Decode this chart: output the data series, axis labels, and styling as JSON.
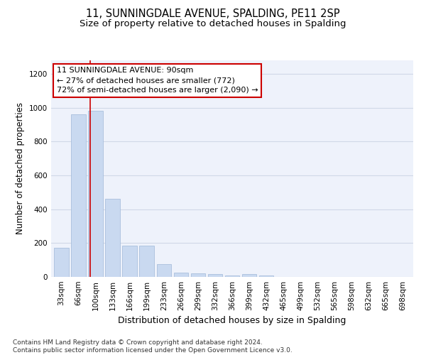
{
  "title": "11, SUNNINGDALE AVENUE, SPALDING, PE11 2SP",
  "subtitle": "Size of property relative to detached houses in Spalding",
  "xlabel": "Distribution of detached houses by size in Spalding",
  "ylabel": "Number of detached properties",
  "categories": [
    "33sqm",
    "66sqm",
    "100sqm",
    "133sqm",
    "166sqm",
    "199sqm",
    "233sqm",
    "266sqm",
    "299sqm",
    "332sqm",
    "366sqm",
    "399sqm",
    "432sqm",
    "465sqm",
    "499sqm",
    "532sqm",
    "565sqm",
    "598sqm",
    "632sqm",
    "665sqm",
    "698sqm"
  ],
  "values": [
    170,
    960,
    980,
    460,
    185,
    185,
    75,
    25,
    20,
    15,
    10,
    15,
    10,
    0,
    0,
    0,
    0,
    0,
    0,
    0,
    0
  ],
  "bar_color": "#c9d9f0",
  "bar_edge_color": "#a0b8d8",
  "grid_color": "#d0d8e8",
  "background_color": "#eef2fb",
  "annotation_text": "11 SUNNINGDALE AVENUE: 90sqm\n← 27% of detached houses are smaller (772)\n72% of semi-detached houses are larger (2,090) →",
  "annotation_box_color": "#ffffff",
  "annotation_box_edge_color": "#cc0000",
  "red_line_color": "#cc0000",
  "footer_text": "Contains HM Land Registry data © Crown copyright and database right 2024.\nContains public sector information licensed under the Open Government Licence v3.0.",
  "ylim": [
    0,
    1280
  ],
  "yticks": [
    0,
    200,
    400,
    600,
    800,
    1000,
    1200
  ],
  "title_fontsize": 10.5,
  "subtitle_fontsize": 9.5,
  "xlabel_fontsize": 9,
  "ylabel_fontsize": 8.5,
  "tick_fontsize": 7.5,
  "annotation_fontsize": 8,
  "footer_fontsize": 6.5
}
